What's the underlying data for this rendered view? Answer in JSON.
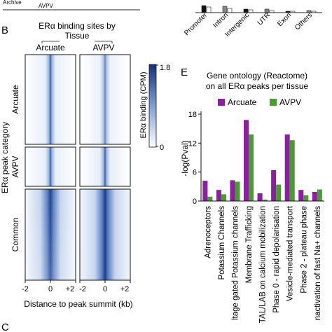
{
  "top": {
    "archive_label": "Archive",
    "avpv_label": "AVPV",
    "bar_categories": [
      "Promoter",
      "Intron",
      "Intergenic",
      "UTR",
      "Exon",
      "Others"
    ]
  },
  "panel_b": {
    "letter": "B",
    "title_line1": "ERα binding sites by",
    "title_line2": "Tissue",
    "columns": [
      "Arcuate",
      "AVPV"
    ],
    "row_axis_label": "ERα peak category",
    "rows": [
      "Arcuate",
      "AVPV",
      "Common"
    ],
    "xticks": [
      "-2",
      "0",
      "+2"
    ],
    "xlabel": "Distance to peak summit (kb)",
    "colorbar": {
      "label": "ERα binding (CPM)",
      "max_label": "1.8",
      "min_label": "0",
      "color": "#1f3f8f"
    }
  },
  "panel_e": {
    "letter": "E"
  },
  "panel_c_partial_letter": "C",
  "chart_data": {
    "type": "bar",
    "title": "Gene ontology (Reactome) on all ERα peaks per tissue",
    "title_line1": "Gene ontology (Reactome)",
    "title_line2": "on all ERα peaks per tissue",
    "ylabel": "-log(Pval)",
    "ylim": [
      0,
      18
    ],
    "yticks": [
      "0",
      "6",
      "12",
      "18"
    ],
    "categories": [
      "Adrenoceptors",
      "Potassium Channels",
      "ltage gated Potassium channels",
      "Membrane Trafficking",
      "TAL/LAB on calcium mobilization",
      "Phase 0 - rapid depolarisation",
      "Vesicle-mediated transport",
      "Phase 2 - plateau phase",
      "nactivation of fast Na+ channels"
    ],
    "series": [
      {
        "name": "Arcuate",
        "color": "#8b1fa0",
        "values": [
          4.2,
          2.3,
          4.3,
          16.8,
          1.6,
          6.4,
          13.8,
          2.3,
          1.9
        ]
      },
      {
        "name": "AVPV",
        "color": "#4a9a36",
        "values": [
          0.9,
          1.4,
          4.0,
          13.8,
          0.3,
          3.4,
          12.6,
          1.2,
          2.4
        ]
      }
    ]
  }
}
